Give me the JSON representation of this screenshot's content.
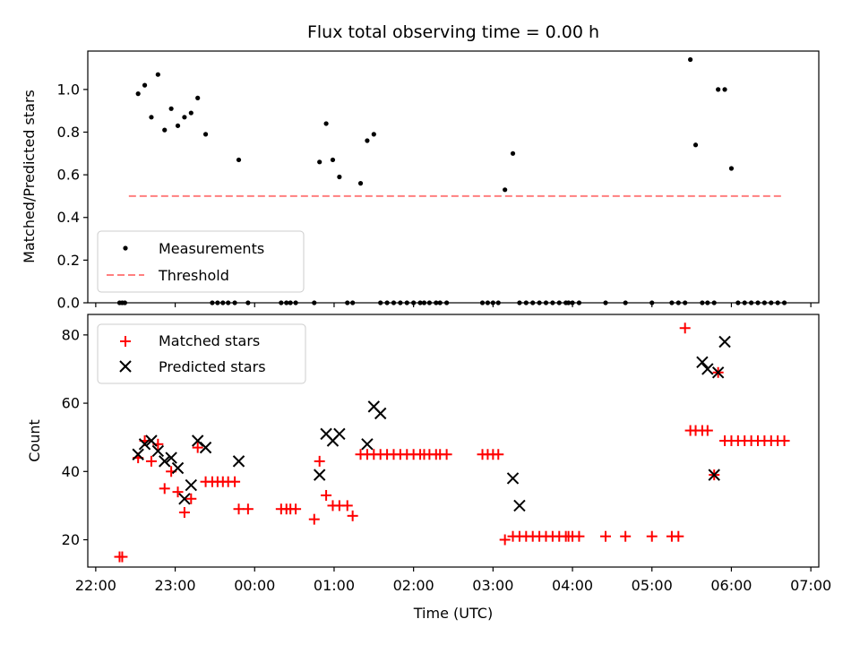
{
  "chart_data": [
    {
      "type": "scatter",
      "title": "Flux total observing time = 0.00 h",
      "xlabel": "",
      "ylabel": "Matched/Predicted stars",
      "xlim": [
        "21:54",
        "07:06"
      ],
      "ylim": [
        0,
        1.18
      ],
      "yticks": [
        "0.0",
        "0.2",
        "0.4",
        "0.6",
        "0.8",
        "1.0"
      ],
      "legend": {
        "position": "lower-left",
        "entries": [
          "Measurements",
          "Threshold"
        ]
      },
      "colors": {
        "measurements": "#000000",
        "threshold": "#ff7f7f"
      },
      "threshold": {
        "y": 0.5,
        "x": [
          "22:25",
          "06:40"
        ]
      },
      "series": [
        {
          "name": "Measurements",
          "x": [
            "22:18",
            "22:20",
            "22:22",
            "22:32",
            "22:37",
            "22:42",
            "22:47",
            "22:52",
            "22:57",
            "23:02",
            "23:07",
            "23:12",
            "23:17",
            "23:23",
            "23:28",
            "23:32",
            "23:36",
            "23:40",
            "23:45",
            "23:48",
            "23:55",
            "00:20",
            "00:24",
            "00:27",
            "00:31",
            "00:45",
            "00:49",
            "00:54",
            "00:59",
            "01:04",
            "01:10",
            "01:14",
            "01:20",
            "01:25",
            "01:30",
            "01:35",
            "01:40",
            "01:45",
            "01:50",
            "01:55",
            "02:00",
            "02:05",
            "02:08",
            "02:12",
            "02:17",
            "02:20",
            "02:25",
            "02:52",
            "02:56",
            "03:00",
            "03:04",
            "03:09",
            "03:15",
            "03:20",
            "03:25",
            "03:30",
            "03:35",
            "03:40",
            "03:45",
            "03:50",
            "03:55",
            "03:57",
            "04:00",
            "04:05",
            "04:25",
            "04:40",
            "05:00",
            "05:15",
            "05:20",
            "05:25",
            "05:29",
            "05:33",
            "05:38",
            "05:42",
            "05:47",
            "05:50",
            "05:55",
            "06:00",
            "06:05",
            "06:10",
            "06:15",
            "06:20",
            "06:25",
            "06:30",
            "06:35",
            "06:40"
          ],
          "y": [
            0.0,
            0.0,
            0.0,
            0.98,
            1.02,
            0.87,
            1.07,
            0.81,
            0.91,
            0.83,
            0.87,
            0.89,
            0.96,
            0.79,
            0.0,
            0.0,
            0.0,
            0.0,
            0.0,
            0.67,
            0.0,
            0.0,
            0.0,
            0.0,
            0.0,
            0.0,
            0.66,
            0.84,
            0.67,
            0.59,
            0.0,
            0.0,
            0.56,
            0.76,
            0.79,
            0.0,
            0.0,
            0.0,
            0.0,
            0.0,
            0.0,
            0.0,
            0.0,
            0.0,
            0.0,
            0.0,
            0.0,
            0.0,
            0.0,
            0.0,
            0.0,
            0.53,
            0.7,
            0.0,
            0.0,
            0.0,
            0.0,
            0.0,
            0.0,
            0.0,
            0.0,
            0.0,
            0.0,
            0.0,
            0.0,
            0.0,
            0.0,
            0.0,
            0.0,
            0.0,
            1.14,
            0.74,
            0.0,
            0.0,
            0.0,
            1.0,
            1.0,
            0.63,
            0.0,
            0.0,
            0.0,
            0.0,
            0.0,
            0.0,
            0.0,
            0.0
          ]
        }
      ]
    },
    {
      "type": "scatter",
      "title": "",
      "xlabel": "Time (UTC)",
      "ylabel": "Count",
      "xlim": [
        "21:54",
        "07:06"
      ],
      "ylim": [
        12,
        86
      ],
      "yticks": [
        "20",
        "40",
        "60",
        "80"
      ],
      "xticks": [
        "22:00",
        "23:00",
        "00:00",
        "01:00",
        "02:00",
        "03:00",
        "04:00",
        "05:00",
        "06:00",
        "07:00"
      ],
      "legend": {
        "position": "upper-left",
        "entries": [
          "Matched stars",
          "Predicted stars"
        ]
      },
      "colors": {
        "matched": "#ff0000",
        "predicted": "#000000"
      },
      "series": [
        {
          "name": "Matched stars",
          "x": [
            "22:18",
            "22:20",
            "22:32",
            "22:37",
            "22:42",
            "22:47",
            "22:52",
            "22:57",
            "23:02",
            "23:07",
            "23:12",
            "23:17",
            "23:23",
            "23:28",
            "23:32",
            "23:36",
            "23:40",
            "23:45",
            "23:48",
            "23:55",
            "00:20",
            "00:24",
            "00:27",
            "00:31",
            "00:45",
            "00:49",
            "00:54",
            "00:59",
            "01:04",
            "01:10",
            "01:14",
            "01:20",
            "01:25",
            "01:30",
            "01:35",
            "01:40",
            "01:45",
            "01:50",
            "01:55",
            "02:00",
            "02:05",
            "02:08",
            "02:12",
            "02:17",
            "02:20",
            "02:25",
            "02:52",
            "02:56",
            "03:00",
            "03:04",
            "03:09",
            "03:15",
            "03:20",
            "03:25",
            "03:30",
            "03:35",
            "03:40",
            "03:45",
            "03:50",
            "03:55",
            "03:57",
            "04:00",
            "04:05",
            "04:25",
            "04:40",
            "05:00",
            "05:15",
            "05:20",
            "05:25",
            "05:29",
            "05:33",
            "05:38",
            "05:42",
            "05:47",
            "05:50",
            "05:55",
            "06:00",
            "06:05",
            "06:10",
            "06:15",
            "06:20",
            "06:25",
            "06:30",
            "06:35",
            "06:40"
          ],
          "y": [
            15,
            15,
            44,
            49,
            43,
            48,
            35,
            40,
            34,
            28,
            32,
            47,
            37,
            37,
            37,
            37,
            37,
            37,
            29,
            29,
            29,
            29,
            29,
            29,
            26,
            43,
            33,
            30,
            30,
            30,
            27,
            45,
            45,
            45,
            45,
            45,
            45,
            45,
            45,
            45,
            45,
            45,
            45,
            45,
            45,
            45,
            45,
            45,
            45,
            45,
            20,
            21,
            21,
            21,
            21,
            21,
            21,
            21,
            21,
            21,
            21,
            21,
            21,
            21,
            21,
            21,
            21,
            21,
            82,
            52,
            52,
            52,
            52,
            39,
            69,
            49,
            49,
            49,
            49,
            49,
            49,
            49,
            49,
            49,
            49
          ]
        },
        {
          "name": "Predicted stars",
          "x": [
            "22:32",
            "22:37",
            "22:42",
            "22:47",
            "22:52",
            "22:57",
            "23:02",
            "23:07",
            "23:12",
            "23:17",
            "23:23",
            "23:48",
            "00:49",
            "00:54",
            "00:59",
            "01:04",
            "01:25",
            "01:30",
            "01:35",
            "03:15",
            "03:20",
            "05:38",
            "05:42",
            "05:47",
            "05:50",
            "05:55"
          ],
          "y": [
            45,
            48,
            49,
            46,
            43,
            44,
            41,
            32,
            36,
            49,
            47,
            43,
            39,
            51,
            49,
            51,
            48,
            59,
            57,
            38,
            30,
            72,
            70,
            39,
            69,
            78
          ]
        }
      ]
    }
  ]
}
